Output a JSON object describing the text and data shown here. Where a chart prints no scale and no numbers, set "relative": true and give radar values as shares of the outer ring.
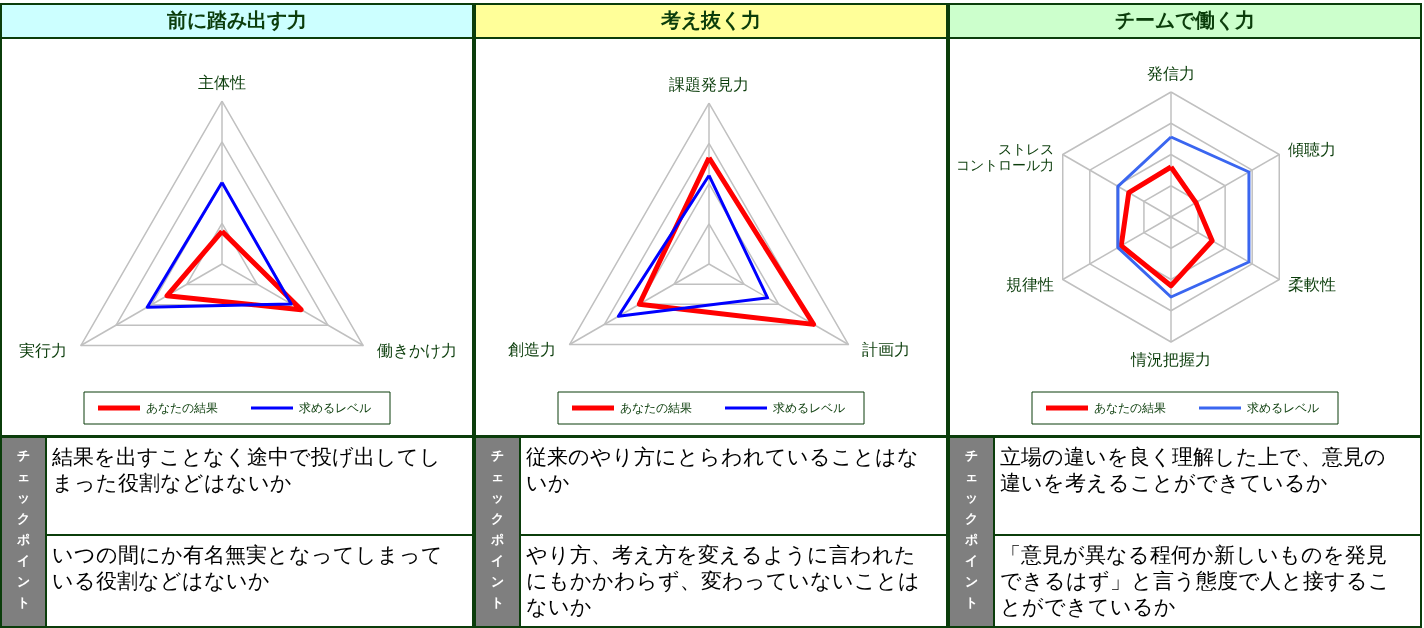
{
  "chart_data": [
    {
      "type": "radar",
      "title": "前に踏み出す力",
      "categories": [
        "主体性",
        "働きかけ力",
        "実行力"
      ],
      "relative": true,
      "grid": true,
      "legend": "bottom",
      "series": [
        {
          "name": "あなたの結果",
          "color": "#ff0000",
          "values": [
            0.2,
            0.56,
            0.39
          ]
        },
        {
          "name": "求めるレベル",
          "color": "#0000ff",
          "values": [
            0.5,
            0.49,
            0.53
          ]
        }
      ],
      "annotations": [
        "チェックポイント",
        "結果を出すことなく途中で投げ出してしまった役割などはないか",
        "いつの間にか有名無実となってしまっている役割などはないか"
      ]
    },
    {
      "type": "radar",
      "title": "考え抜く力",
      "categories": [
        "課題発見力",
        "計画力",
        "創造力"
      ],
      "relative": true,
      "grid": true,
      "legend": "bottom",
      "series": [
        {
          "name": "あなたの結果",
          "color": "#ff0000",
          "values": [
            0.66,
            0.75,
            0.5
          ]
        },
        {
          "name": "求めるレベル",
          "color": "#0000ff",
          "values": [
            0.55,
            0.42,
            0.65
          ]
        }
      ],
      "annotations": [
        "チェックポイント",
        "従来のやり方にとらわれていることはないか",
        "やり方、考え方を変えるように言われたにもかかわらず、変わっていないことはないか"
      ]
    },
    {
      "type": "radar",
      "title": "チームで働く力",
      "categories": [
        "発信力",
        "傾聴力",
        "柔軟性",
        "情況把握力",
        "規律性",
        "ストレスコントロール力"
      ],
      "relative": true,
      "grid": true,
      "legend": "bottom",
      "series": [
        {
          "name": "あなたの結果",
          "color": "#ff0000",
          "values": [
            0.4,
            0.23,
            0.38,
            0.55,
            0.46,
            0.39
          ]
        },
        {
          "name": "求めるレベル",
          "color": "#3a66f0",
          "values": [
            0.64,
            0.72,
            0.72,
            0.64,
            0.49,
            0.49
          ]
        }
      ],
      "annotations": [
        "チェックポイント",
        "立場の違いを良く理解した上で、意見の違いを考えることができているか",
        "「意見が異なる程何か新しいものを発見できるはず」と言う態度で人と接することができているか"
      ]
    }
  ]
}
